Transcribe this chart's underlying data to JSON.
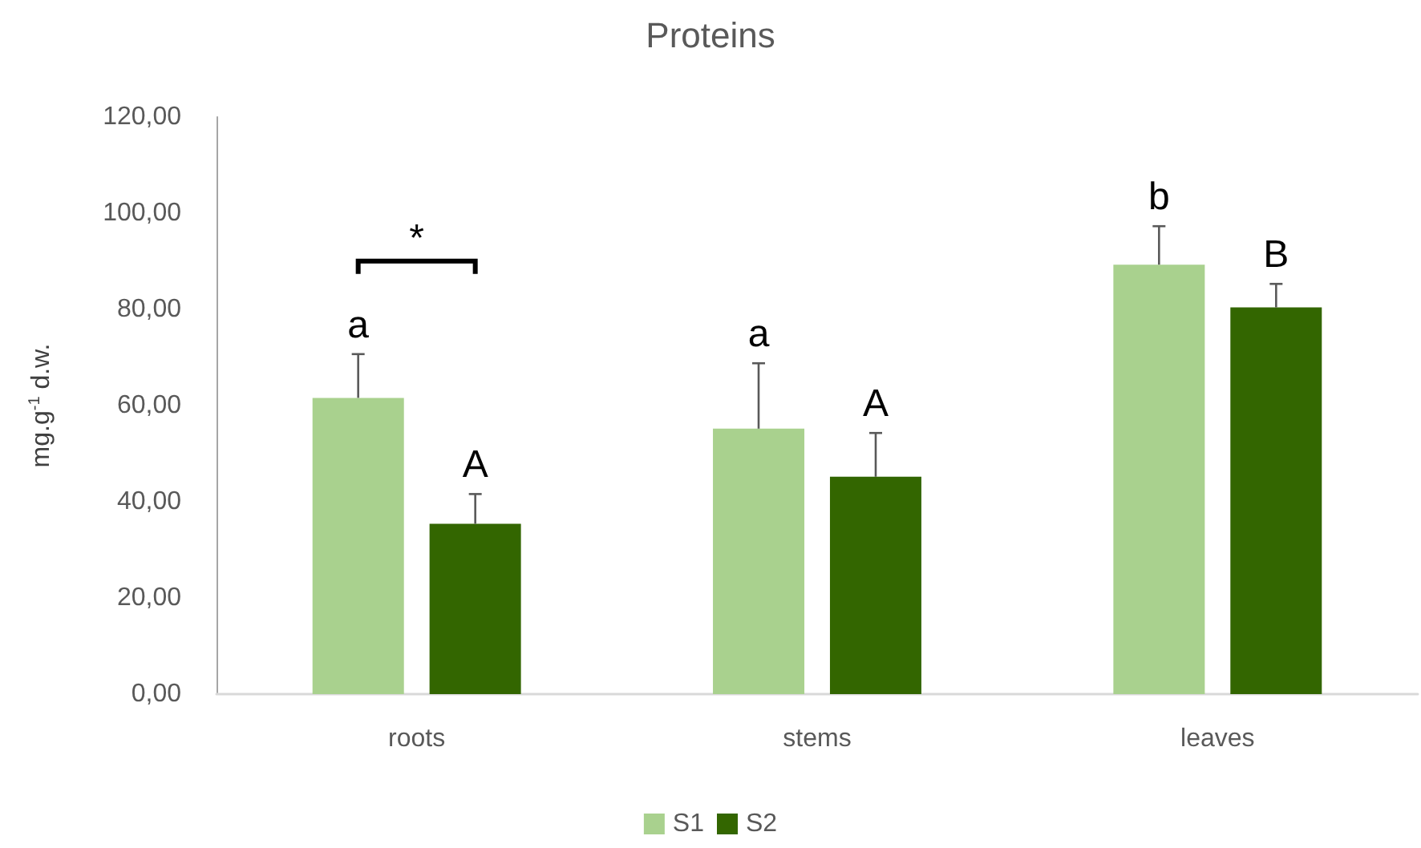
{
  "chart_data": {
    "type": "bar",
    "title": "Proteins",
    "ylabel": "mg.g$^{-1}$ d.w.",
    "categories": [
      "roots",
      "stems",
      "leaves"
    ],
    "series": [
      {
        "name": "S1",
        "color": "#a9d18e",
        "values": [
          61.6,
          55.2,
          89.3
        ],
        "errors": [
          [
            61.6,
            70.7
          ],
          [
            55.2,
            68.8
          ],
          [
            89.3,
            97.3
          ]
        ]
      },
      {
        "name": "S2",
        "color": "#336600",
        "values": [
          35.4,
          45.2,
          80.4
        ],
        "errors": [
          [
            35.4,
            41.6
          ],
          [
            45.2,
            54.3
          ],
          [
            80.4,
            85.3
          ]
        ]
      }
    ],
    "ylim": [
      0,
      120
    ],
    "yticks": [
      {
        "value": 0,
        "label": "0,00"
      },
      {
        "value": 20,
        "label": "20,00"
      },
      {
        "value": 40,
        "label": "40,00"
      },
      {
        "value": 60,
        "label": "60,00"
      },
      {
        "value": 80,
        "label": "80,00"
      },
      {
        "value": 100,
        "label": "100,00"
      },
      {
        "value": 120,
        "label": "120,00"
      }
    ],
    "annotations": [
      "a",
      "A",
      "a",
      "A",
      "b",
      "B",
      "*"
    ],
    "grid": false,
    "legend": "bottom"
  }
}
